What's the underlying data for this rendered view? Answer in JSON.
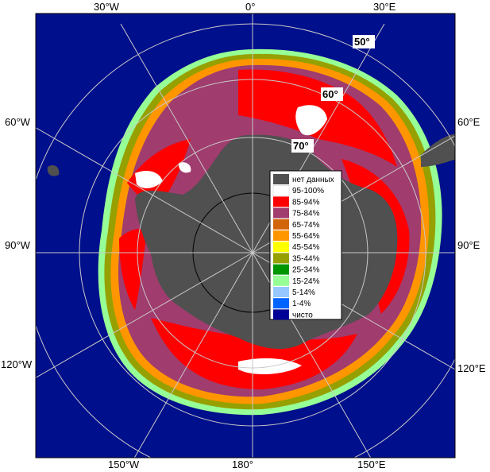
{
  "map": {
    "lon_labels": {
      "top": [
        "30°W",
        "0°",
        "30°E"
      ],
      "bottom": [
        "150°W",
        "180°",
        "150°E"
      ],
      "left": [
        "60°W",
        "90°W",
        "120°W"
      ],
      "right": [
        "60°E",
        "90°E",
        "120°E"
      ]
    },
    "lat_labels": [
      "50°",
      "60°",
      "70°"
    ],
    "colors": {
      "ocean": "#000f8c",
      "land": "#505050",
      "frame": "#000000",
      "grid": "#c8c8c8"
    }
  },
  "legend": {
    "items": [
      {
        "label": "нет данных",
        "color": "#505050"
      },
      {
        "label": "95-100%",
        "color": "#ffffff"
      },
      {
        "label": "85-94%",
        "color": "#ff0000"
      },
      {
        "label": "75-84%",
        "color": "#a03c6e"
      },
      {
        "label": "65-74%",
        "color": "#d2640a"
      },
      {
        "label": "55-64%",
        "color": "#ff9600"
      },
      {
        "label": "45-54%",
        "color": "#ffff00"
      },
      {
        "label": "35-44%",
        "color": "#96a000"
      },
      {
        "label": "25-34%",
        "color": "#009600"
      },
      {
        "label": "15-24%",
        "color": "#96ff96"
      },
      {
        "label": "5-14%",
        "color": "#96c8ff"
      },
      {
        "label": "1-4%",
        "color": "#0064ff"
      },
      {
        "label": "чисто",
        "color": "#000096"
      }
    ]
  }
}
